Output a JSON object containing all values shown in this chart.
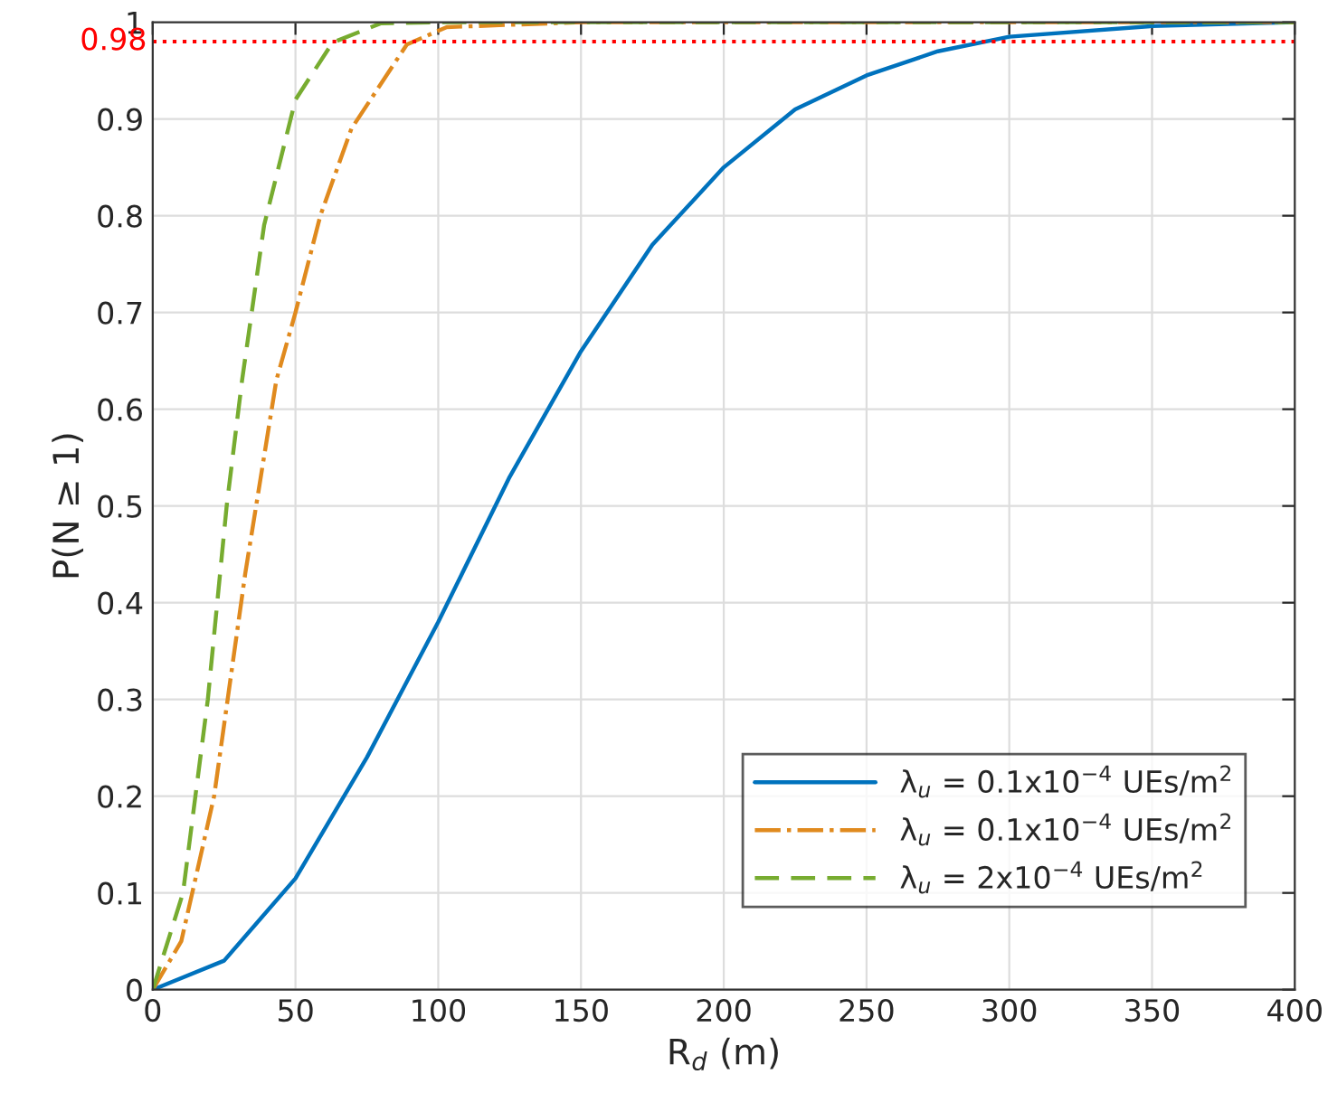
{
  "chart_data": {
    "type": "line",
    "xlabel": "R$_{d}$ (m)",
    "ylabel": "P(N ≥ 1)",
    "xlim": [
      0,
      400
    ],
    "xticks": [
      0,
      50,
      100,
      150,
      200,
      250,
      300,
      350,
      400
    ],
    "ylim": [
      0,
      1
    ],
    "yticks": [
      0,
      0.1,
      0.2,
      0.3,
      0.4,
      0.5,
      0.6,
      0.7,
      0.8,
      0.9,
      1
    ],
    "grid": true,
    "legend": "bottom right",
    "series": [
      {
        "name": "λ$_{u}$ = 0.1x10$^{−4}$ UEs/m$^{2}$",
        "color": "#0072bd",
        "line_style": "solid",
        "x": [
          0,
          25,
          50,
          75,
          100,
          125,
          150,
          175,
          200,
          225,
          250,
          275,
          300,
          350,
          400
        ],
        "values": [
          0,
          0.03,
          0.115,
          0.24,
          0.38,
          0.53,
          0.66,
          0.77,
          0.85,
          0.91,
          0.945,
          0.97,
          0.985,
          0.996,
          1
        ]
      },
      {
        "name": "λ$_{u}$ = 0.1x10$^{−4}$ UEs/m$^{2}$",
        "color": "#e08a1e",
        "line_style": "dashdot",
        "x": [
          0,
          10,
          21.5,
          32.4,
          43.3,
          50,
          58.7,
          69.6,
          89,
          103,
          150,
          400
        ],
        "values": [
          0,
          0.05,
          0.2,
          0.43,
          0.63,
          0.7,
          0.8,
          0.89,
          0.977,
          0.995,
          1,
          1
        ]
      },
      {
        "name": "λ$_{u}$ = 2x10$^{−4}$ UEs/m$^{2}$",
        "color": "#77ac30",
        "line_style": "dashed",
        "x": [
          0,
          10.6,
          19.3,
          25.9,
          31.3,
          39,
          50,
          63,
          80,
          100,
          400
        ],
        "values": [
          0,
          0.1,
          0.3,
          0.5,
          0.63,
          0.79,
          0.92,
          0.979,
          0.999,
          1,
          1
        ]
      }
    ],
    "ref_lines": [
      {
        "axis": "y",
        "value": 0.98,
        "label": "0.98",
        "color": "#ff0000",
        "line_style": "dotted"
      }
    ]
  }
}
